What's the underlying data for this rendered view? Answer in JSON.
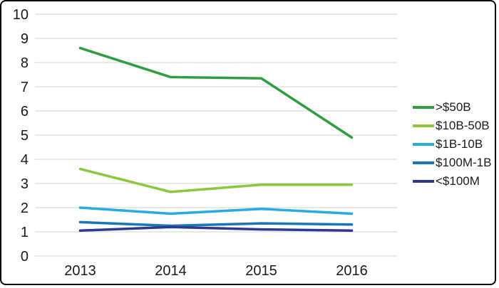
{
  "frame": {
    "background_color": "#ffffff",
    "border_color": "#000000"
  },
  "chart_data": {
    "type": "line",
    "title": "",
    "xlabel": "",
    "ylabel": "",
    "categories": [
      "2013",
      "2014",
      "2015",
      "2016"
    ],
    "series": [
      {
        "name": ">$50B",
        "color": "#2E9E41",
        "values": [
          8.6,
          7.4,
          7.35,
          4.9
        ]
      },
      {
        "name": "$10B-50B",
        "color": "#8DC63F",
        "values": [
          3.6,
          2.65,
          2.95,
          2.95
        ]
      },
      {
        "name": "$1B-10B",
        "color": "#29ABE2",
        "values": [
          2.0,
          1.75,
          1.95,
          1.75
        ]
      },
      {
        "name": "$100M-1B",
        "color": "#1B75BC",
        "values": [
          1.4,
          1.25,
          1.35,
          1.3
        ]
      },
      {
        "name": "<$100M",
        "color": "#2B3990",
        "values": [
          1.05,
          1.2,
          1.1,
          1.05
        ]
      }
    ],
    "ylim": [
      0,
      10
    ],
    "ytick_step": 1,
    "yticks": [
      "0",
      "1",
      "2",
      "3",
      "4",
      "5",
      "6",
      "7",
      "8",
      "9",
      "10"
    ],
    "grid": true,
    "gridline_color": "#D9D9D9",
    "text_color": "#1A1A1A",
    "legend_position": "right",
    "line_width": 3.5
  }
}
